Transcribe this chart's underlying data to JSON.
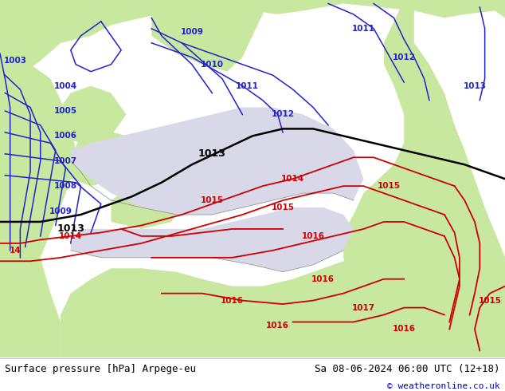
{
  "title_left": "Surface pressure [hPa] Arpege-eu",
  "title_right": "Sa 08-06-2024 06:00 UTC (12+18)",
  "copyright": "© weatheronline.co.uk",
  "land_color": "#c8e8a0",
  "sea_color": "#d8d8e8",
  "footer_bg": "#ffffff",
  "footer_text_color": "#000000",
  "copyright_color": "#0000cc",
  "font_size_footer": 9,
  "fig_width": 6.34,
  "fig_height": 4.9,
  "dpi": 100,
  "blue_color": "#2222cc",
  "black_color": "#000000",
  "red_color": "#cc0000",
  "blue_lw": 1.1,
  "black_lw": 1.8,
  "red_lw": 1.3,
  "label_fontsize": 7.5,
  "label_fontsize_black": 9.0
}
